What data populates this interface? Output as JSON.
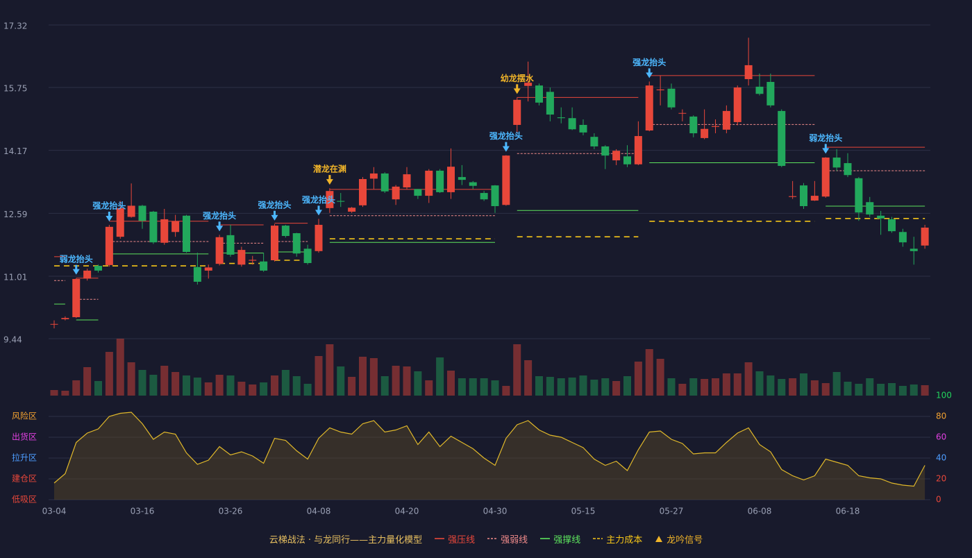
{
  "chart_data": [
    {
      "type": "candlestick",
      "categories": [
        "03-04",
        null,
        null,
        null,
        null,
        null,
        null,
        null,
        "03-16",
        null,
        null,
        null,
        null,
        null,
        null,
        null,
        "03-26",
        null,
        null,
        null,
        null,
        null,
        null,
        null,
        "04-08",
        null,
        null,
        null,
        null,
        null,
        null,
        null,
        "04-20",
        null,
        null,
        null,
        null,
        null,
        null,
        null,
        "04-30",
        null,
        null,
        null,
        null,
        null,
        null,
        null,
        "05-15",
        null,
        null,
        null,
        null,
        null,
        null,
        null,
        "05-27",
        null,
        null,
        null,
        null,
        null,
        null,
        null,
        "06-08",
        null,
        null,
        null,
        null,
        null,
        null,
        null,
        "06-18",
        null,
        null,
        null,
        null,
        null,
        null,
        null
      ],
      "open": [
        9.8,
        9.93,
        9.98,
        10.95,
        11.27,
        11.29,
        12.0,
        12.5,
        12.78,
        12.63,
        11.85,
        12.12,
        12.53,
        11.24,
        11.15,
        11.32,
        12.04,
        11.3,
        11.4,
        11.38,
        11.41,
        12.28,
        12.09,
        11.7,
        11.64,
        12.72,
        12.9,
        12.63,
        12.79,
        13.46,
        13.59,
        12.94,
        13.24,
        13.2,
        13.03,
        13.66,
        13.12,
        13.5,
        13.37,
        13.1,
        13.29,
        12.8,
        14.81,
        15.79,
        15.8,
        15.64,
        15.0,
        14.98,
        14.81,
        14.51,
        14.27,
        13.92,
        14.02,
        13.82,
        14.67,
        15.68,
        15.72,
        15.1,
        15.02,
        14.48,
        14.76,
        14.69,
        14.88,
        15.96,
        15.77,
        15.89,
        15.16,
        13.0,
        13.29,
        12.91,
        13.01,
        13.99,
        13.85,
        13.47,
        12.87,
        12.53,
        12.44,
        12.12,
        11.7,
        11.78
      ],
      "high": [
        9.9,
        10.0,
        10.96,
        11.2,
        11.3,
        12.3,
        12.9,
        13.34,
        12.8,
        12.65,
        12.7,
        12.55,
        12.55,
        11.6,
        11.3,
        12.05,
        12.3,
        11.75,
        11.52,
        11.6,
        12.32,
        12.3,
        12.1,
        11.8,
        12.45,
        13.22,
        13.1,
        12.75,
        13.5,
        13.75,
        13.62,
        13.3,
        13.75,
        13.2,
        13.7,
        13.7,
        14.22,
        13.8,
        13.4,
        13.15,
        13.3,
        14.05,
        15.5,
        16.4,
        15.85,
        15.75,
        15.25,
        15.25,
        14.95,
        14.6,
        14.3,
        14.2,
        14.3,
        14.9,
        15.9,
        16.05,
        15.85,
        15.2,
        15.05,
        15.2,
        14.95,
        15.3,
        15.8,
        17.0,
        16.1,
        16.1,
        15.2,
        13.4,
        13.35,
        13.4,
        14.0,
        14.2,
        14.1,
        13.5,
        13.0,
        12.65,
        12.5,
        12.2,
        12.0,
        12.3
      ],
      "low": [
        9.7,
        9.9,
        9.96,
        10.9,
        11.1,
        11.25,
        11.95,
        12.48,
        12.2,
        11.82,
        11.8,
        12.0,
        11.6,
        10.8,
        10.95,
        11.28,
        11.5,
        11.25,
        11.3,
        11.12,
        11.38,
        11.98,
        11.5,
        11.3,
        11.6,
        12.6,
        12.75,
        12.6,
        12.75,
        13.2,
        13.1,
        12.8,
        13.2,
        12.95,
        12.85,
        13.1,
        12.95,
        13.3,
        13.2,
        12.9,
        12.6,
        12.78,
        14.6,
        15.4,
        15.3,
        14.9,
        14.85,
        14.68,
        14.55,
        14.2,
        13.7,
        13.8,
        13.75,
        13.8,
        14.65,
        15.3,
        15.2,
        14.9,
        14.5,
        14.45,
        14.6,
        14.6,
        14.8,
        15.8,
        15.55,
        15.25,
        13.75,
        12.95,
        12.7,
        12.9,
        12.98,
        13.65,
        13.5,
        12.4,
        12.5,
        12.05,
        12.1,
        11.75,
        11.3,
        11.7
      ],
      "close": [
        9.81,
        9.96,
        10.94,
        11.15,
        11.15,
        12.25,
        12.72,
        12.78,
        12.4,
        11.86,
        12.44,
        12.39,
        11.62,
        10.87,
        11.23,
        11.99,
        11.55,
        11.67,
        11.42,
        11.15,
        12.28,
        12.02,
        11.58,
        11.34,
        12.3,
        13.15,
        12.88,
        12.73,
        13.45,
        13.59,
        13.14,
        13.26,
        13.57,
        13.03,
        13.66,
        13.12,
        13.76,
        13.43,
        13.28,
        12.94,
        12.77,
        14.04,
        15.44,
        15.87,
        15.37,
        15.07,
        14.98,
        14.7,
        14.62,
        14.27,
        14.04,
        14.16,
        13.82,
        14.53,
        15.8,
        15.7,
        15.25,
        15.11,
        14.6,
        14.71,
        14.78,
        15.16,
        15.75,
        16.31,
        15.59,
        15.3,
        13.78,
        13.02,
        12.77,
        13.03,
        13.99,
        13.74,
        13.55,
        12.61,
        12.56,
        12.46,
        12.14,
        11.86,
        11.64,
        12.23
      ],
      "ylim": [
        9.44,
        17.32
      ],
      "yticks": [
        9.44,
        11.01,
        12.59,
        14.17,
        15.75,
        17.32
      ],
      "grid": true,
      "up_color": "#e8473a",
      "down_color": "#22a85c",
      "levels": [
        {
          "name": "强压线",
          "color": "#e8473a",
          "style": "solid",
          "segments": [
            {
              "start": 0,
              "end": 1,
              "value": 11.5
            },
            {
              "start": 2,
              "end": 4,
              "value": 10.96
            },
            {
              "start": 5,
              "end": 14,
              "value": 12.39
            },
            {
              "start": 15,
              "end": 19,
              "value": 12.3
            },
            {
              "start": 20,
              "end": 23,
              "value": 12.34
            },
            {
              "start": 25,
              "end": 40,
              "value": 13.19
            },
            {
              "start": 42,
              "end": 53,
              "value": 15.5
            },
            {
              "start": 54,
              "end": 69,
              "value": 16.05
            },
            {
              "start": 70,
              "end": 79,
              "value": 14.25
            }
          ]
        },
        {
          "name": "强弱线",
          "color": "#f08a8a",
          "style": "dashed",
          "segments": [
            {
              "start": 0,
              "end": 1,
              "value": 10.9
            },
            {
              "start": 2,
              "end": 4,
              "value": 10.43
            },
            {
              "start": 5,
              "end": 14,
              "value": 11.88
            },
            {
              "start": 15,
              "end": 19,
              "value": 11.84
            },
            {
              "start": 20,
              "end": 23,
              "value": 11.88
            },
            {
              "start": 25,
              "end": 40,
              "value": 12.53
            },
            {
              "start": 42,
              "end": 53,
              "value": 14.09
            },
            {
              "start": 54,
              "end": 69,
              "value": 14.82
            },
            {
              "start": 70,
              "end": 79,
              "value": 13.66
            }
          ]
        },
        {
          "name": "强撑线",
          "color": "#5de35d",
          "style": "solid",
          "segments": [
            {
              "start": 0,
              "end": 1,
              "value": 10.31
            },
            {
              "start": 2,
              "end": 4,
              "value": 9.91
            },
            {
              "start": 5,
              "end": 14,
              "value": 11.57
            },
            {
              "start": 15,
              "end": 19,
              "value": 11.59
            },
            {
              "start": 20,
              "end": 23,
              "value": 11.62
            },
            {
              "start": 25,
              "end": 40,
              "value": 11.86
            },
            {
              "start": 42,
              "end": 53,
              "value": 12.66
            },
            {
              "start": 54,
              "end": 69,
              "value": 13.86
            },
            {
              "start": 70,
              "end": 79,
              "value": 12.77
            }
          ]
        },
        {
          "name": "主力成本",
          "color": "#f5c518",
          "style": "longdash",
          "segments": [
            {
              "start": 0,
              "end": 14,
              "value": 11.27
            },
            {
              "start": 15,
              "end": 19,
              "value": 11.33
            },
            {
              "start": 20,
              "end": 23,
              "value": 11.41
            },
            {
              "start": 25,
              "end": 40,
              "value": 11.95
            },
            {
              "start": 42,
              "end": 53,
              "value": 12.0
            },
            {
              "start": 54,
              "end": 69,
              "value": 12.39
            },
            {
              "start": 70,
              "end": 79,
              "value": 12.46
            }
          ]
        }
      ],
      "signal_name": "龙吟信号",
      "signal_color": "#f0b429",
      "signals": [
        {
          "label": "弱龙抬头",
          "index": 2,
          "color": "#4db8ff"
        },
        {
          "label": "强龙抬头",
          "index": 5,
          "color": "#4db8ff"
        },
        {
          "label": "强龙抬头",
          "index": 15,
          "color": "#4db8ff"
        },
        {
          "label": "强龙抬头",
          "index": 20,
          "color": "#4db8ff"
        },
        {
          "label": "强龙抬头",
          "index": 24,
          "color": "#4db8ff"
        },
        {
          "label": "潜龙在渊",
          "index": 25,
          "color": "#f0b429"
        },
        {
          "label": "强龙抬头",
          "index": 41,
          "color": "#4db8ff"
        },
        {
          "label": "幼龙摆水",
          "index": 42,
          "color": "#f0b429"
        },
        {
          "label": "强龙抬头",
          "index": 54,
          "color": "#4db8ff"
        },
        {
          "label": "弱龙抬头",
          "index": 70,
          "color": "#4db8ff"
        }
      ],
      "legend_title": "云梯战法 · 与龙同行——主力量化模型"
    },
    {
      "type": "bar",
      "values": [
        8,
        7,
        22,
        41,
        21,
        63,
        82,
        48,
        37,
        30,
        43,
        34,
        29,
        26,
        19,
        30,
        29,
        20,
        16,
        19,
        29,
        37,
        28,
        17,
        57,
        74,
        42,
        27,
        56,
        54,
        28,
        43,
        42,
        35,
        22,
        55,
        36,
        25,
        25,
        25,
        22,
        14,
        74,
        51,
        28,
        27,
        25,
        26,
        29,
        23,
        25,
        21,
        28,
        49,
        67,
        53,
        25,
        17,
        25,
        24,
        25,
        32,
        32,
        48,
        35,
        29,
        24,
        25,
        32,
        22,
        18,
        34,
        20,
        17,
        25,
        17,
        18,
        14,
        16,
        15
      ]
    },
    {
      "type": "line",
      "color": "#e0b82a",
      "values": [
        16,
        25,
        55,
        64,
        68,
        80,
        83,
        84,
        73,
        58,
        65,
        63,
        45,
        34,
        38,
        51,
        43,
        46,
        42,
        35,
        59,
        57,
        47,
        39,
        59,
        69,
        65,
        63,
        73,
        76,
        65,
        67,
        71,
        53,
        65,
        51,
        61,
        55,
        49,
        40,
        33,
        59,
        72,
        76,
        67,
        62,
        60,
        55,
        50,
        39,
        33,
        37,
        28,
        48,
        65,
        66,
        58,
        54,
        44,
        45,
        45,
        55,
        64,
        69,
        53,
        46,
        29,
        23,
        19,
        23,
        39,
        36,
        33,
        23,
        21,
        20,
        16,
        14,
        13,
        33
      ],
      "ylim": [
        0,
        100
      ],
      "yticks": [
        0,
        20,
        40,
        60,
        80,
        100
      ],
      "ytick_colors": [
        "#e8473a",
        "#e8473a",
        "#4d9dff",
        "#e040e0",
        "#f0a030",
        "#22d35c"
      ],
      "zones": [
        {
          "label": "风险区",
          "value": 80,
          "color": "#f0a030"
        },
        {
          "label": "出货区",
          "value": 60,
          "color": "#e040e0"
        },
        {
          "label": "拉升区",
          "value": 40,
          "color": "#4d9dff"
        },
        {
          "label": "建仓区",
          "value": 20,
          "color": "#e8473a"
        },
        {
          "label": "低吸区",
          "value": 0,
          "color": "#e8473a"
        }
      ]
    }
  ]
}
